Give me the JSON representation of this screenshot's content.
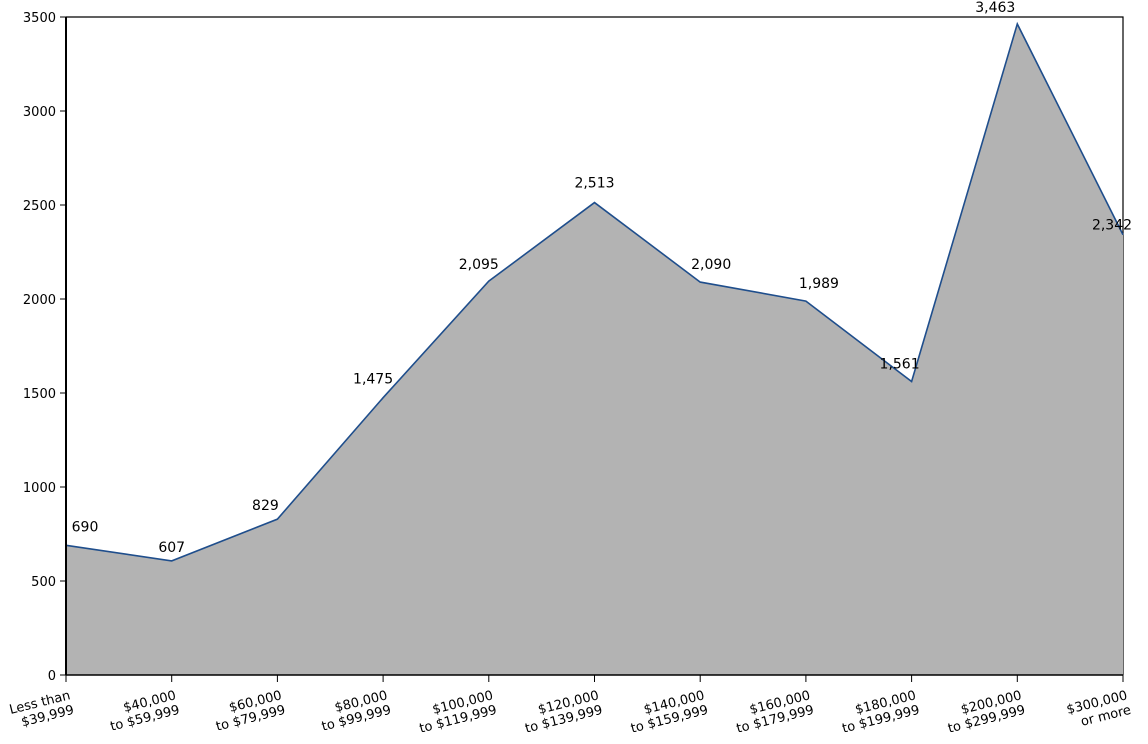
{
  "chart_data": {
    "type": "area",
    "categories": [
      [
        "Less than",
        "$39,999"
      ],
      [
        "$40,000",
        "to $59,999"
      ],
      [
        "$60,000",
        "to $79,999"
      ],
      [
        "$80,000",
        "to $99,999"
      ],
      [
        "$100,000",
        "to $119,999"
      ],
      [
        "$120,000",
        "to $139,999"
      ],
      [
        "$140,000",
        "to $159,999"
      ],
      [
        "$160,000",
        "to $179,999"
      ],
      [
        "$180,000",
        "to $199,999"
      ],
      [
        "$200,000",
        "to $299,999"
      ],
      [
        "$300,000",
        "or more"
      ]
    ],
    "values": [
      690,
      607,
      829,
      1475,
      2095,
      2513,
      2090,
      1989,
      1561,
      3463,
      2342
    ],
    "value_labels": [
      "690",
      "607",
      "829",
      "1,475",
      "2,095",
      "2,513",
      "2,090",
      "1,989",
      "1,561",
      "3,463",
      "2,342"
    ],
    "y_ticks": [
      0,
      500,
      1000,
      1500,
      2000,
      2500,
      3000,
      3500
    ],
    "ylim": [
      0,
      3500
    ],
    "title": "",
    "xlabel": "",
    "ylabel": "",
    "grid": false,
    "colors": {
      "fill": "#b3b3b3",
      "line": "#1f4e8c",
      "axis": "#000000"
    }
  }
}
